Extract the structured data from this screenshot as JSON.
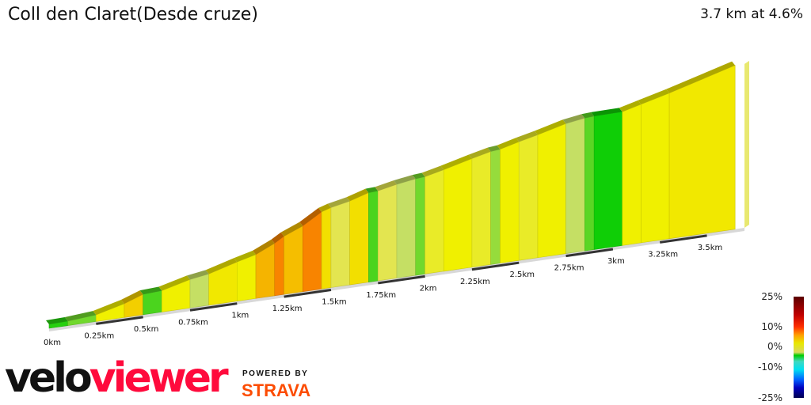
{
  "header": {
    "title": "Coll den Claret(Desde cruze)",
    "summary": "3.7 km at 4.6%"
  },
  "legend": {
    "labels": [
      "25%",
      "10%",
      "0%",
      "-10%",
      "-25%"
    ]
  },
  "branding": {
    "logo_a": "velo",
    "logo_b": "viewer",
    "powered": "POWERED BY",
    "strava": "STRAVA"
  },
  "chart_data": {
    "type": "area",
    "title": "Coll den Claret(Desde cruze)",
    "distance_km": 3.7,
    "avg_gradient_pct": 4.6,
    "x_ticks": [
      "0km",
      "0.25km",
      "0.5km",
      "0.75km",
      "1km",
      "1.25km",
      "1.5km",
      "1.75km",
      "2km",
      "2.25km",
      "2.5km",
      "2.75km",
      "3km",
      "3.25km",
      "3.5km"
    ],
    "segments": [
      {
        "length_km": 0.1,
        "gradient_pct": 0.5
      },
      {
        "length_km": 0.15,
        "gradient_pct": 1.5
      },
      {
        "length_km": 0.15,
        "gradient_pct": 5
      },
      {
        "length_km": 0.1,
        "gradient_pct": 7
      },
      {
        "length_km": 0.1,
        "gradient_pct": 1
      },
      {
        "length_km": 0.15,
        "gradient_pct": 5
      },
      {
        "length_km": 0.1,
        "gradient_pct": 3
      },
      {
        "length_km": 0.15,
        "gradient_pct": 5.5
      },
      {
        "length_km": 0.1,
        "gradient_pct": 5
      },
      {
        "length_km": 0.1,
        "gradient_pct": 9
      },
      {
        "length_km": 0.05,
        "gradient_pct": 12
      },
      {
        "length_km": 0.1,
        "gradient_pct": 8
      },
      {
        "length_km": 0.1,
        "gradient_pct": 12
      },
      {
        "length_km": 0.05,
        "gradient_pct": 6
      },
      {
        "length_km": 0.1,
        "gradient_pct": 4
      },
      {
        "length_km": 0.1,
        "gradient_pct": 6
      },
      {
        "length_km": 0.05,
        "gradient_pct": 1
      },
      {
        "length_km": 0.1,
        "gradient_pct": 4
      },
      {
        "length_km": 0.1,
        "gradient_pct": 3
      },
      {
        "length_km": 0.05,
        "gradient_pct": 1.5
      },
      {
        "length_km": 0.1,
        "gradient_pct": 4.5
      },
      {
        "length_km": 0.15,
        "gradient_pct": 5
      },
      {
        "length_km": 0.1,
        "gradient_pct": 4.5
      },
      {
        "length_km": 0.05,
        "gradient_pct": 2
      },
      {
        "length_km": 0.1,
        "gradient_pct": 5
      },
      {
        "length_km": 0.1,
        "gradient_pct": 4.5
      },
      {
        "length_km": 0.15,
        "gradient_pct": 5
      },
      {
        "length_km": 0.1,
        "gradient_pct": 3
      },
      {
        "length_km": 0.05,
        "gradient_pct": 1.2
      },
      {
        "length_km": 0.15,
        "gradient_pct": 0.2
      },
      {
        "length_km": 0.1,
        "gradient_pct": 5
      },
      {
        "length_km": 0.15,
        "gradient_pct": 5
      },
      {
        "length_km": 0.35,
        "gradient_pct": 5.5
      }
    ],
    "color_scale": {
      "min_pct": -25,
      "max_pct": 25
    }
  }
}
